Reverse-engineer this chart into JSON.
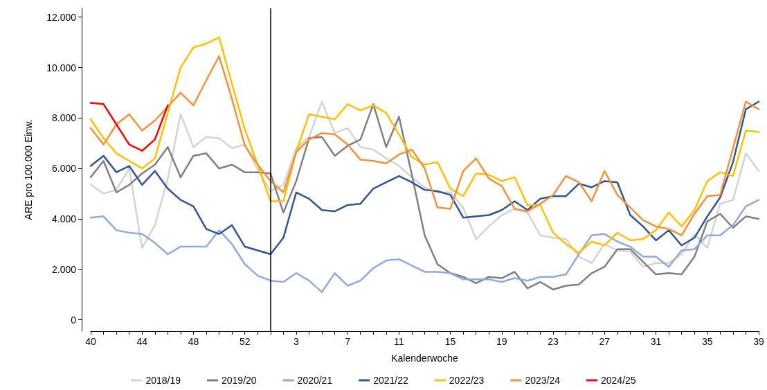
{
  "chart_data": {
    "type": "line",
    "xlabel": "Kalenderwoche",
    "ylabel": "ARE pro 100.000 Einw.",
    "legend": "bottom",
    "marker": "none",
    "line_style": "solid",
    "categories": [
      "40",
      null,
      null,
      null,
      "44",
      null,
      null,
      null,
      "48",
      null,
      null,
      null,
      "52",
      null,
      null,
      null,
      "3",
      null,
      null,
      null,
      "7",
      null,
      null,
      null,
      "11",
      null,
      null,
      null,
      "15",
      null,
      null,
      null,
      "19",
      null,
      null,
      null,
      "23",
      null,
      null,
      null,
      "27",
      null,
      null,
      null,
      "31",
      null,
      null,
      null,
      "35",
      null,
      null,
      null,
      "39"
    ],
    "ylim": [
      -450,
      12350
    ],
    "yticks": [
      0,
      {
        "value": 2000,
        "label": "2.000"
      },
      {
        "value": 4000,
        "label": "4.000"
      },
      {
        "value": 6000,
        "label": "6.000"
      },
      {
        "value": 8000,
        "label": "8.000"
      },
      {
        "value": 10000,
        "label": "10.000"
      },
      {
        "value": 12000,
        "label": "12.000"
      }
    ],
    "series": [
      {
        "name": "2018/19",
        "color": "#d3d3d3",
        "values": [
          5350,
          5000,
          5150,
          6000,
          2850,
          3750,
          5600,
          8150,
          6850,
          7250,
          7200,
          6800,
          6950,
          5950,
          5100,
          5350,
          6800,
          7250,
          8650,
          7400,
          7600,
          6850,
          6750,
          6400,
          6100,
          5650,
          5250,
          5050,
          5050,
          4450,
          3200,
          3700,
          4150,
          4400,
          4250,
          3350,
          3250,
          3200,
          2500,
          2250,
          3000,
          2750,
          2700,
          2100,
          2250,
          2250,
          2600,
          3400,
          2850,
          4600,
          4750,
          6600,
          5900
        ]
      },
      {
        "name": "2019/20",
        "color": "#7f7f7f",
        "values": [
          5650,
          6300,
          5050,
          5350,
          5800,
          6150,
          6850,
          5650,
          6500,
          6600,
          6000,
          6150,
          5850,
          5850,
          5800,
          4250,
          5500,
          7200,
          7250,
          6500,
          6900,
          7150,
          8550,
          6850,
          8050,
          5750,
          3350,
          2200,
          1850,
          1700,
          1450,
          1700,
          1650,
          1900,
          1250,
          1500,
          1200,
          1350,
          1400,
          1850,
          2100,
          2800,
          2800,
          2300,
          1800,
          1850,
          1800,
          2500,
          3900,
          4200,
          3650,
          4100,
          4000
        ]
      },
      {
        "name": "2020/21",
        "color": "#8faadc",
        "values": [
          4050,
          4100,
          3550,
          3450,
          3400,
          3050,
          2600,
          2900,
          2900,
          2900,
          3550,
          3000,
          2200,
          1750,
          1550,
          1500,
          1850,
          1550,
          1100,
          1850,
          1350,
          1550,
          2050,
          2350,
          2400,
          2150,
          1900,
          1900,
          1850,
          1600,
          1600,
          1600,
          1500,
          1650,
          1550,
          1700,
          1700,
          1800,
          2600,
          3350,
          3400,
          3100,
          2900,
          2500,
          2500,
          2100,
          2750,
          2800,
          3350,
          3350,
          3750,
          4500,
          4750
        ]
      },
      {
        "name": "2021/22",
        "color": "#2f5597",
        "values": [
          6100,
          6500,
          5850,
          6100,
          5350,
          5900,
          5200,
          4750,
          4500,
          3600,
          3400,
          3750,
          2900,
          2750,
          2600,
          3250,
          5050,
          4800,
          4350,
          4300,
          4550,
          4600,
          5200,
          5450,
          5700,
          5450,
          5150,
          5100,
          4950,
          4050,
          4100,
          4150,
          4350,
          4700,
          4350,
          4800,
          4900,
          4900,
          5400,
          5250,
          5500,
          5450,
          4150,
          3700,
          3150,
          3550,
          2950,
          3250,
          4100,
          4850,
          6250,
          8350,
          8650
        ]
      },
      {
        "name": "2022/23",
        "color": "#ffc000",
        "values": [
          7950,
          7200,
          6600,
          6300,
          6000,
          6400,
          8200,
          10000,
          10800,
          10950,
          11200,
          9350,
          7550,
          6150,
          4700,
          4700,
          6650,
          8150,
          8050,
          7950,
          8550,
          8300,
          8500,
          8200,
          7350,
          6450,
          6150,
          6250,
          5200,
          4900,
          5800,
          5750,
          5500,
          5650,
          4550,
          4550,
          3450,
          3000,
          2650,
          3100,
          2950,
          3450,
          3150,
          3200,
          3550,
          4250,
          3700,
          4350,
          5500,
          5850,
          5700,
          7500,
          7450
        ]
      },
      {
        "name": "2023/24",
        "color": "#f4913a",
        "values": [
          7600,
          6950,
          7750,
          8150,
          7500,
          7900,
          8450,
          9000,
          8500,
          9500,
          10450,
          8750,
          6900,
          6150,
          5500,
          5050,
          6650,
          7150,
          7400,
          7350,
          6950,
          6350,
          6300,
          6200,
          6550,
          6750,
          6000,
          4450,
          4400,
          5900,
          6400,
          5600,
          5300,
          4400,
          4300,
          4600,
          4950,
          5700,
          5450,
          4700,
          5900,
          4950,
          4450,
          3950,
          3700,
          3600,
          3350,
          4200,
          4900,
          4950,
          6800,
          8650,
          8350
        ]
      },
      {
        "name": "2024/25",
        "color": "#ff0000",
        "values": [
          8600,
          8550,
          7750,
          6950,
          6700,
          7150,
          8500,
          null,
          null,
          null,
          null,
          null,
          null,
          null,
          null,
          null,
          null,
          null,
          null,
          null,
          null,
          null,
          null,
          null,
          null,
          null,
          null,
          null,
          null,
          null,
          null,
          null,
          null,
          null,
          null,
          null,
          null,
          null,
          null,
          null,
          null,
          null,
          null,
          null,
          null,
          null,
          null,
          null,
          null,
          null,
          null,
          null,
          null
        ]
      }
    ]
  }
}
